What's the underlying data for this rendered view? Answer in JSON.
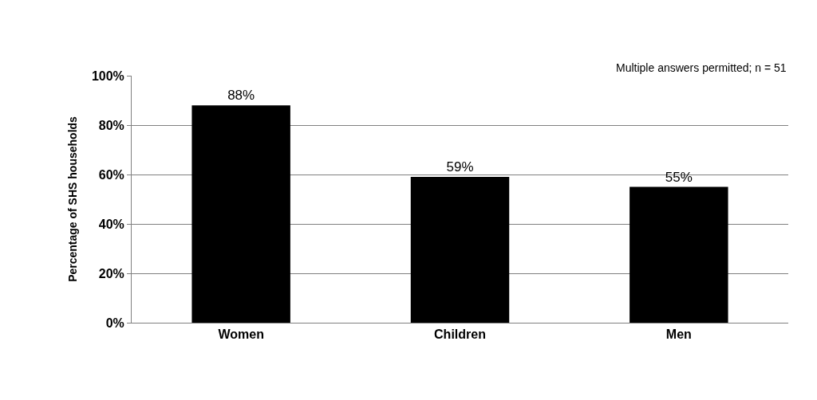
{
  "chart_data": {
    "type": "bar",
    "ylabel": "Percentage of SHS households",
    "annotations": [
      "Multiple answers permitted; n = 51"
    ],
    "categories": [
      "Women",
      "Children",
      "Men"
    ],
    "values": [
      88,
      59,
      55
    ],
    "value_labels": [
      "88%",
      "59%",
      "55%"
    ],
    "color": "#000000",
    "ylim": [
      0,
      100
    ],
    "yticks": [
      {
        "value": 0,
        "label": "0%"
      },
      {
        "value": 20,
        "label": "20%"
      },
      {
        "value": 40,
        "label": "40%"
      },
      {
        "value": 60,
        "label": "60%"
      },
      {
        "value": 80,
        "label": "80%"
      },
      {
        "value": 100,
        "label": "100%"
      }
    ],
    "grid": "y"
  }
}
